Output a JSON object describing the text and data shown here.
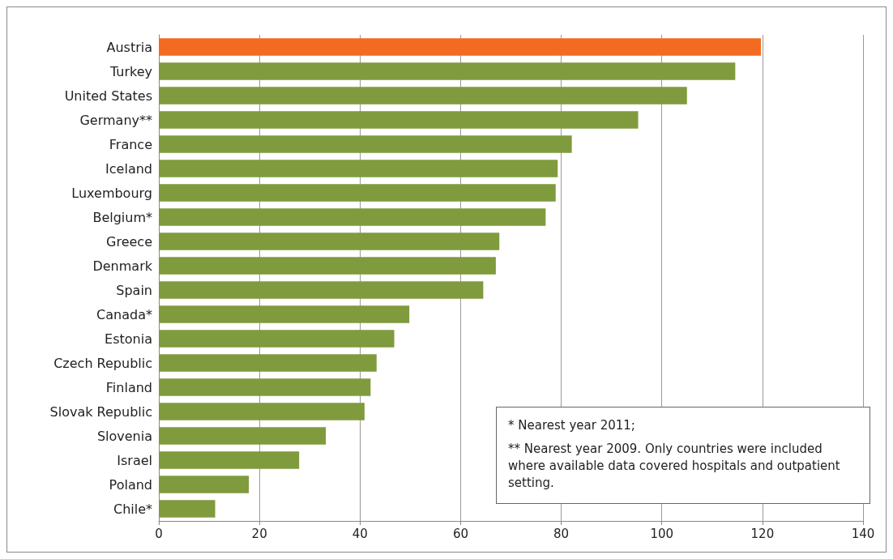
{
  "chart_data": {
    "type": "bar",
    "orientation": "horizontal",
    "categories": [
      "Austria",
      "Turkey",
      "United States",
      "Germany**",
      "France",
      "Iceland",
      "Luxembourg",
      "Belgium*",
      "Greece",
      "Denmark",
      "Spain",
      "Canada*",
      "Estonia",
      "Czech Republic",
      "Finland",
      "Slovak Republic",
      "Slovenia",
      "Israel",
      "Poland",
      "Chile*"
    ],
    "values": [
      119.7,
      114.6,
      105.0,
      95.3,
      82.1,
      79.3,
      78.9,
      76.9,
      67.7,
      67.0,
      64.5,
      49.8,
      46.8,
      43.3,
      42.1,
      40.9,
      33.2,
      27.9,
      17.9,
      11.2
    ],
    "colors": [
      "#f26b21",
      "#7f9b3e",
      "#7f9b3e",
      "#7f9b3e",
      "#7f9b3e",
      "#7f9b3e",
      "#7f9b3e",
      "#7f9b3e",
      "#7f9b3e",
      "#7f9b3e",
      "#7f9b3e",
      "#7f9b3e",
      "#7f9b3e",
      "#7f9b3e",
      "#7f9b3e",
      "#7f9b3e",
      "#7f9b3e",
      "#7f9b3e",
      "#7f9b3e",
      "#7f9b3e"
    ],
    "xlim": [
      0,
      140
    ],
    "xticks": [
      0,
      20,
      40,
      60,
      80,
      100,
      120,
      140
    ],
    "grid": "x",
    "annotations": [
      "* Nearest year 2011;",
      "** Nearest year 2009. Only countries were included where available data covered hospitals and outpatient setting."
    ]
  }
}
